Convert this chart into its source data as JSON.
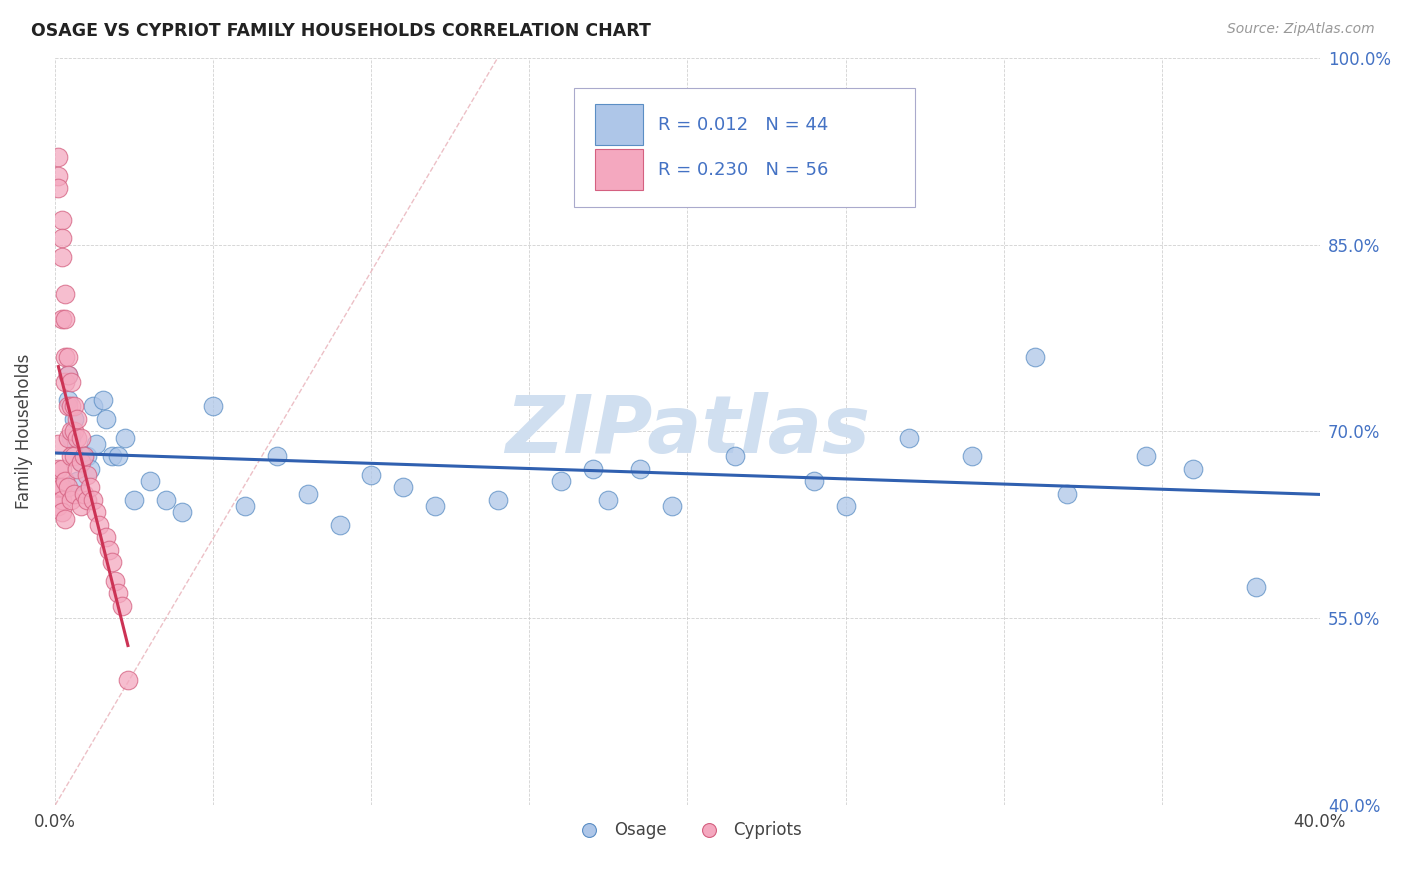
{
  "title": "OSAGE VS CYPRIOT FAMILY HOUSEHOLDS CORRELATION CHART",
  "source_text": "Source: ZipAtlas.com",
  "ylabel": "Family Households",
  "xlim": [
    0.0,
    0.4
  ],
  "ylim": [
    0.4,
    1.0
  ],
  "xtick_vals": [
    0.0,
    0.05,
    0.1,
    0.15,
    0.2,
    0.25,
    0.3,
    0.35,
    0.4
  ],
  "ytick_vals": [
    0.4,
    0.55,
    0.7,
    0.85,
    1.0
  ],
  "yticklabels": [
    "40.0%",
    "55.0%",
    "70.0%",
    "85.0%",
    "100.0%"
  ],
  "osage_R": 0.012,
  "osage_N": 44,
  "cypriot_R": 0.23,
  "cypriot_N": 56,
  "osage_color": "#aec6e8",
  "cypriot_color": "#f4a8bf",
  "osage_edge_color": "#5b8ec4",
  "cypriot_edge_color": "#d46080",
  "osage_line_color": "#3060b0",
  "cypriot_line_color": "#cc3355",
  "diagonal_color": "#e8b0b8",
  "watermark": "ZIPatlas",
  "watermark_color": "#d0dff0",
  "label_color": "#4472c4",
  "osage_x": [
    0.004,
    0.004,
    0.005,
    0.006,
    0.007,
    0.008,
    0.009,
    0.01,
    0.011,
    0.012,
    0.013,
    0.015,
    0.016,
    0.018,
    0.02,
    0.022,
    0.025,
    0.03,
    0.035,
    0.04,
    0.05,
    0.06,
    0.07,
    0.08,
    0.09,
    0.1,
    0.11,
    0.12,
    0.14,
    0.16,
    0.17,
    0.175,
    0.185,
    0.195,
    0.215,
    0.24,
    0.25,
    0.27,
    0.29,
    0.31,
    0.32,
    0.345,
    0.36,
    0.38
  ],
  "osage_y": [
    0.745,
    0.725,
    0.695,
    0.71,
    0.66,
    0.675,
    0.68,
    0.68,
    0.67,
    0.72,
    0.69,
    0.725,
    0.71,
    0.68,
    0.68,
    0.695,
    0.645,
    0.66,
    0.645,
    0.635,
    0.72,
    0.64,
    0.68,
    0.65,
    0.625,
    0.665,
    0.655,
    0.64,
    0.645,
    0.66,
    0.67,
    0.645,
    0.67,
    0.64,
    0.68,
    0.66,
    0.64,
    0.695,
    0.68,
    0.76,
    0.65,
    0.68,
    0.67,
    0.575
  ],
  "cypriot_x": [
    0.001,
    0.001,
    0.001,
    0.001,
    0.001,
    0.001,
    0.001,
    0.002,
    0.002,
    0.002,
    0.002,
    0.002,
    0.002,
    0.002,
    0.002,
    0.003,
    0.003,
    0.003,
    0.003,
    0.003,
    0.003,
    0.004,
    0.004,
    0.004,
    0.004,
    0.004,
    0.005,
    0.005,
    0.005,
    0.005,
    0.005,
    0.006,
    0.006,
    0.006,
    0.006,
    0.007,
    0.007,
    0.007,
    0.008,
    0.008,
    0.008,
    0.009,
    0.009,
    0.01,
    0.01,
    0.011,
    0.012,
    0.013,
    0.014,
    0.016,
    0.017,
    0.018,
    0.019,
    0.02,
    0.021,
    0.023
  ],
  "cypriot_y": [
    0.92,
    0.905,
    0.895,
    0.69,
    0.67,
    0.655,
    0.64,
    0.87,
    0.855,
    0.84,
    0.79,
    0.67,
    0.655,
    0.645,
    0.635,
    0.81,
    0.79,
    0.76,
    0.74,
    0.66,
    0.63,
    0.76,
    0.745,
    0.72,
    0.695,
    0.655,
    0.74,
    0.72,
    0.7,
    0.68,
    0.645,
    0.72,
    0.7,
    0.68,
    0.65,
    0.71,
    0.695,
    0.67,
    0.695,
    0.675,
    0.64,
    0.68,
    0.65,
    0.665,
    0.645,
    0.655,
    0.645,
    0.635,
    0.625,
    0.615,
    0.605,
    0.595,
    0.58,
    0.57,
    0.56,
    0.5
  ]
}
